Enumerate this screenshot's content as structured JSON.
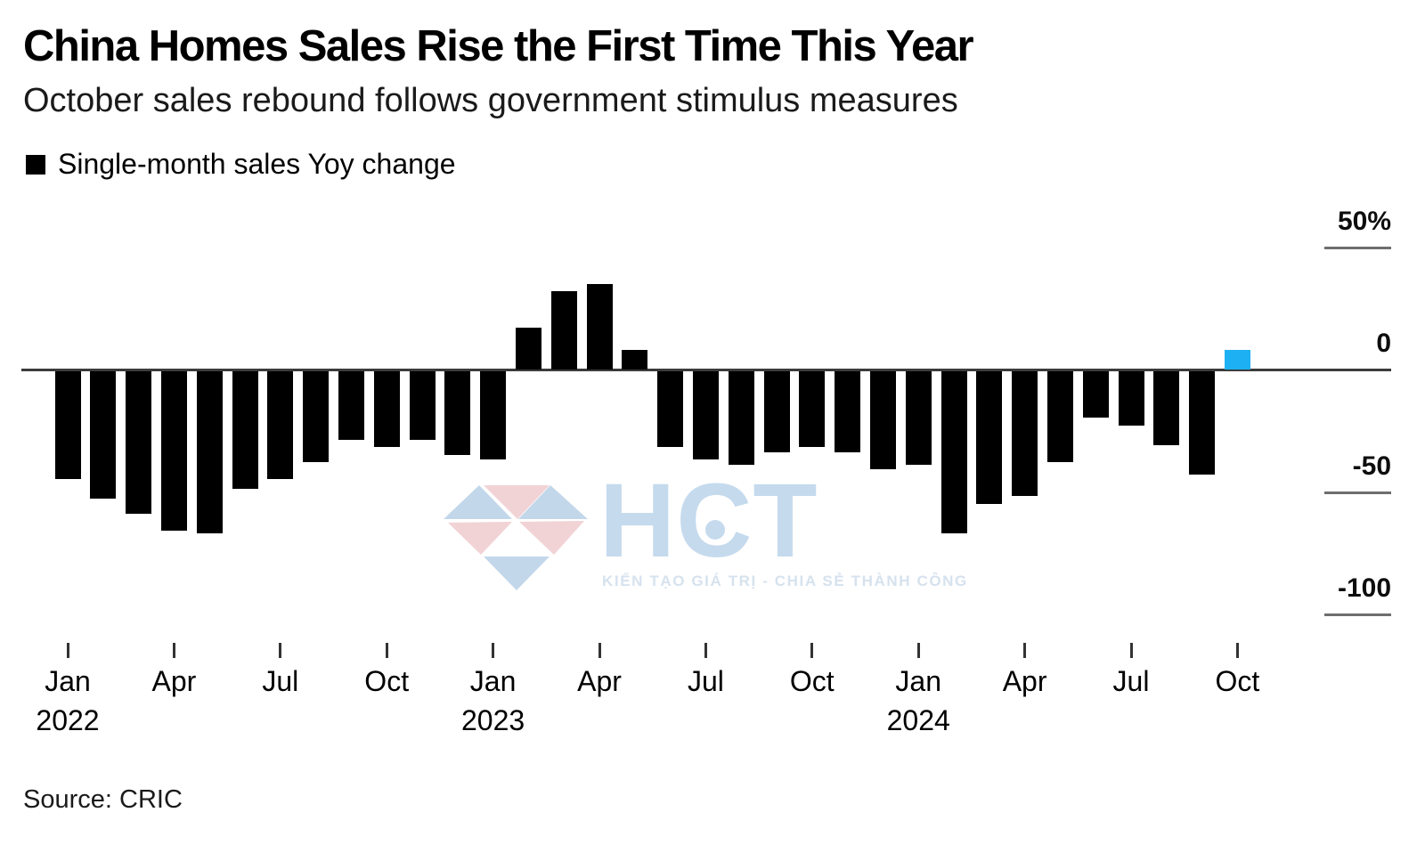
{
  "header": {
    "title": "China Homes Sales Rise the First Time This Year",
    "subtitle": "October sales rebound follows government stimulus measures"
  },
  "legend": {
    "label": "Single-month sales Yoy change",
    "swatch_color": "#000000"
  },
  "source": "Source: CRIC",
  "watermark": {
    "brand": "HCT",
    "tagline": "KIẾN TẠO GIÁ TRỊ - CHIA SẺ THÀNH CÔNG",
    "logo_blue": "#c3d7ea",
    "logo_pink": "#f1d3d6"
  },
  "chart_data": {
    "type": "bar",
    "title": "China Homes Sales Rise the First Time This Year",
    "subtitle": "October sales rebound follows government stimulus measures",
    "series_name": "Single-month sales Yoy change",
    "unit": "%",
    "grid": false,
    "legend_position": "top-left",
    "ylim": [
      -100,
      50
    ],
    "bar_color": "#000000",
    "highlight": {
      "index": 33,
      "color": "#1DB0F2",
      "label": "Oct 2024"
    },
    "x": [
      "Jan 2022",
      "Feb 2022",
      "Mar 2022",
      "Apr 2022",
      "May 2022",
      "Jun 2022",
      "Jul 2022",
      "Aug 2022",
      "Sep 2022",
      "Oct 2022",
      "Nov 2022",
      "Dec 2022",
      "Jan 2023",
      "Feb 2023",
      "Mar 2023",
      "Apr 2023",
      "May 2023",
      "Jun 2023",
      "Jul 2023",
      "Aug 2023",
      "Sep 2023",
      "Oct 2023",
      "Nov 2023",
      "Dec 2023",
      "Jan 2024",
      "Feb 2024",
      "Mar 2024",
      "Apr 2024",
      "May 2024",
      "Jun 2024",
      "Jul 2024",
      "Aug 2024",
      "Sep 2024",
      "Oct 2024"
    ],
    "values": [
      -44,
      -52,
      -58,
      -65,
      -66,
      -48,
      -44,
      -37,
      -28,
      -31,
      -28,
      -34,
      -36,
      17,
      32,
      35,
      8,
      -31,
      -36,
      -38,
      -33,
      -31,
      -33,
      -40,
      -38,
      -66,
      -54,
      -51,
      -37,
      -19,
      -22,
      -30,
      -42,
      8
    ],
    "y_ticks": [
      {
        "label": "50%",
        "value": 50
      },
      {
        "label": "0",
        "value": 0
      },
      {
        "label": "-50",
        "value": -50
      },
      {
        "label": "-100",
        "value": -100
      }
    ],
    "x_ticks": [
      {
        "label": "Jan",
        "month": 0,
        "year": "2022"
      },
      {
        "label": "Apr",
        "month": 3
      },
      {
        "label": "Jul",
        "month": 6
      },
      {
        "label": "Oct",
        "month": 9
      },
      {
        "label": "Jan",
        "month": 12,
        "year": "2023"
      },
      {
        "label": "Apr",
        "month": 15
      },
      {
        "label": "Jul",
        "month": 18
      },
      {
        "label": "Oct",
        "month": 21
      },
      {
        "label": "Jan",
        "month": 24,
        "year": "2024"
      },
      {
        "label": "Apr",
        "month": 27
      },
      {
        "label": "Jul",
        "month": 30
      },
      {
        "label": "Oct",
        "month": 33
      }
    ]
  }
}
